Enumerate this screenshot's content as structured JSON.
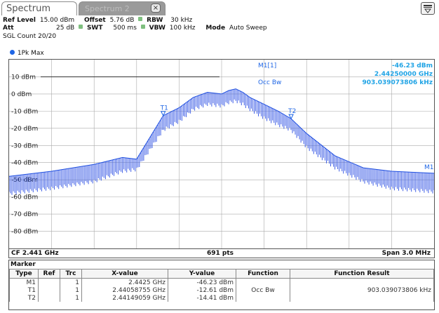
{
  "tabs": {
    "active_label": "Spectrum",
    "inactive_label": "Spectrum 2",
    "close_glyph": "×"
  },
  "settings": {
    "ref_level_label": "Ref Level",
    "ref_level_value": "15.00 dBm",
    "offset_label": "Offset",
    "offset_value": "5.76 dB",
    "rbw_label": "RBW",
    "rbw_value": "30 kHz",
    "att_label": "Att",
    "att_value": "25 dB",
    "swt_label": "SWT",
    "swt_value": "500 ms",
    "vbw_label": "VBW",
    "vbw_value": "100 kHz",
    "mode_label": "Mode",
    "mode_value": "Auto Sweep",
    "sgl_count": "SGL Count 20/20"
  },
  "trace_label": "1Pk Max",
  "marker_readout": {
    "name": "M1[1]",
    "level": "-46.23 dBm",
    "freq": "2.44250000 GHz",
    "occbw_label": "Occ Bw",
    "occbw_value": "903.039073806 kHz"
  },
  "plot_labels": {
    "t1": "T1",
    "t2": "T2",
    "m1": "M1"
  },
  "bottom": {
    "cf": "CF 2.441 GHz",
    "pts": "691 pts",
    "span": "Span 3.0 MHz"
  },
  "marker_table": {
    "title": "Marker",
    "headers": [
      "Type",
      "Ref",
      "Trc",
      "X-value",
      "Y-value",
      "Function",
      "Function Result"
    ],
    "rows": [
      {
        "type": "M1",
        "ref": "",
        "trc": "1",
        "x": "2.4425 GHz",
        "y": "-46.23 dBm",
        "func": "",
        "result": ""
      },
      {
        "type": "T1",
        "ref": "",
        "trc": "1",
        "x": "2.44058755 GHz",
        "y": "-12.61 dBm",
        "func": "Occ Bw",
        "result": "903.039073806 kHz"
      },
      {
        "type": "T2",
        "ref": "",
        "trc": "1",
        "x": "2.44149059 GHz",
        "y": "-14.41 dBm",
        "func": "",
        "result": ""
      }
    ]
  },
  "chart_data": {
    "type": "line",
    "xlabel": "",
    "ylabel": "",
    "x_range_ghz": [
      2.4395,
      2.4425
    ],
    "ylim": [
      -90,
      20
    ],
    "y_ticks": [
      "10 dBm",
      "0 dBm",
      "-10 dBm",
      "-20 dBm",
      "-30 dBm",
      "-40 dBm",
      "-50 dBm",
      "-60 dBm",
      "-70 dBm",
      "-80 dBm"
    ],
    "y_tick_values": [
      10,
      0,
      -10,
      -20,
      -30,
      -40,
      -50,
      -60,
      -70,
      -80
    ],
    "reference_line_dbm": 10,
    "grid": true,
    "series": [
      {
        "color": "#1f4fe0",
        "x_ghz": [
          2.4395,
          2.4398,
          2.4401,
          2.4403,
          2.4404,
          2.44058755,
          2.4407,
          2.4408,
          2.4409,
          2.441,
          2.44105,
          2.4411,
          2.44115,
          2.4412,
          2.4413,
          2.4414,
          2.44149059,
          2.4416,
          2.4418,
          2.442,
          2.4422,
          2.4425
        ],
        "y_dbm": [
          -48,
          -45,
          -41,
          -37,
          -38,
          -12.6,
          -8,
          -2,
          1,
          0,
          2,
          3,
          1,
          -2,
          -6,
          -10,
          -14.4,
          -23,
          -36,
          -43,
          -45,
          -46.2
        ],
        "noise_band_low_dbm": [
          -57,
          -54,
          -50,
          -44,
          -43,
          -20,
          -15,
          -8,
          -5,
          -6,
          -4,
          -3,
          -5,
          -8,
          -13,
          -17,
          -20,
          -30,
          -42,
          -50,
          -54,
          -56
        ]
      }
    ]
  }
}
